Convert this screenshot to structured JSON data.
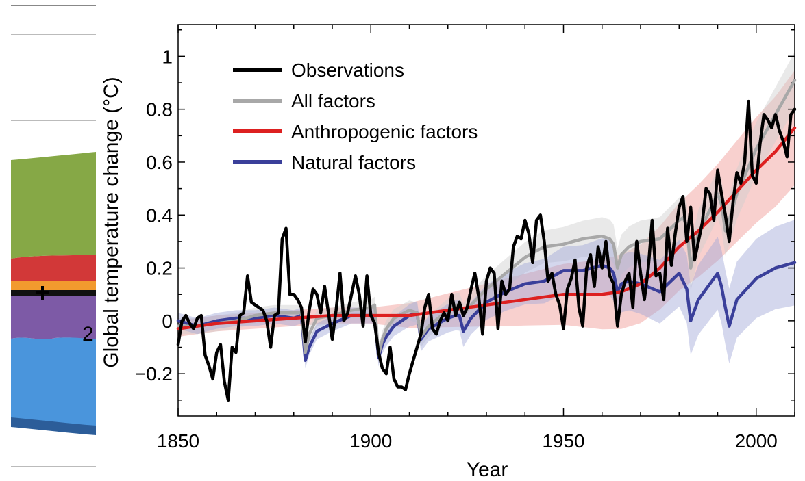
{
  "backdrop": {
    "partial_text": "2"
  },
  "chart_data": {
    "type": "line",
    "xlabel": "Year",
    "ylabel": "Global temperature change (°C)",
    "xlim": [
      1850,
      2010
    ],
    "ylim": [
      -0.36,
      1.12
    ],
    "xticks": [
      1850,
      1900,
      1950,
      2000
    ],
    "yticks": [
      {
        "value": 1,
        "label": "1"
      },
      {
        "value": 0.8,
        "label": "0.8"
      },
      {
        "value": 0.6,
        "label": "0.6"
      },
      {
        "value": 0.4,
        "label": "0.4"
      },
      {
        "value": 0.2,
        "label": "0.2"
      },
      {
        "value": 0,
        "label": "0"
      },
      {
        "value": -0.2,
        "label": "−0.2"
      }
    ],
    "legend_position": "top-left",
    "series": [
      {
        "name": "Observations",
        "color": "#000000",
        "x": [
          1850,
          1851,
          1852,
          1853,
          1854,
          1855,
          1856,
          1857,
          1858,
          1859,
          1860,
          1861,
          1862,
          1863,
          1864,
          1865,
          1866,
          1867,
          1868,
          1869,
          1870,
          1871,
          1872,
          1873,
          1874,
          1875,
          1876,
          1877,
          1878,
          1879,
          1880,
          1881,
          1882,
          1883,
          1884,
          1885,
          1886,
          1887,
          1888,
          1889,
          1890,
          1891,
          1892,
          1893,
          1894,
          1895,
          1896,
          1897,
          1898,
          1899,
          1900,
          1901,
          1902,
          1903,
          1904,
          1905,
          1906,
          1907,
          1908,
          1909,
          1910,
          1911,
          1912,
          1913,
          1914,
          1915,
          1916,
          1917,
          1918,
          1919,
          1920,
          1921,
          1922,
          1923,
          1924,
          1925,
          1926,
          1927,
          1928,
          1929,
          1930,
          1931,
          1932,
          1933,
          1934,
          1935,
          1936,
          1937,
          1938,
          1939,
          1940,
          1941,
          1942,
          1943,
          1944,
          1945,
          1946,
          1947,
          1948,
          1949,
          1950,
          1951,
          1952,
          1953,
          1954,
          1955,
          1956,
          1957,
          1958,
          1959,
          1960,
          1961,
          1962,
          1963,
          1964,
          1965,
          1966,
          1967,
          1968,
          1969,
          1970,
          1971,
          1972,
          1973,
          1974,
          1975,
          1976,
          1977,
          1978,
          1979,
          1980,
          1981,
          1982,
          1983,
          1984,
          1985,
          1986,
          1987,
          1988,
          1989,
          1990,
          1991,
          1992,
          1993,
          1994,
          1995,
          1996,
          1997,
          1998,
          1999,
          2000,
          2001,
          2002,
          2003,
          2004,
          2005,
          2006,
          2007,
          2008,
          2009,
          2010
        ],
        "values": [
          -0.09,
          0.0,
          0.02,
          -0.01,
          -0.03,
          0.01,
          0.02,
          -0.13,
          -0.17,
          -0.22,
          -0.12,
          -0.09,
          -0.23,
          -0.3,
          -0.1,
          -0.12,
          0.02,
          0.03,
          0.17,
          0.07,
          0.06,
          0.05,
          0.04,
          0.0,
          -0.1,
          0.02,
          0.03,
          0.31,
          0.35,
          0.1,
          0.1,
          0.08,
          0.05,
          -0.08,
          0.04,
          0.12,
          0.1,
          0.03,
          0.13,
          0.03,
          -0.07,
          0.04,
          0.18,
          0.0,
          0.03,
          0.1,
          0.17,
          0.1,
          -0.02,
          0.17,
          0.02,
          -0.01,
          -0.12,
          -0.18,
          -0.2,
          -0.1,
          -0.22,
          -0.25,
          -0.25,
          -0.26,
          -0.2,
          -0.15,
          -0.1,
          -0.05,
          0.05,
          0.1,
          -0.03,
          -0.05,
          0.0,
          0.03,
          0.0,
          0.1,
          0.02,
          0.07,
          0.02,
          0.05,
          0.12,
          0.18,
          0.09,
          -0.05,
          0.15,
          0.2,
          0.18,
          -0.03,
          0.15,
          0.1,
          0.12,
          0.28,
          0.32,
          0.31,
          0.38,
          0.33,
          0.22,
          0.38,
          0.4,
          0.3,
          0.15,
          0.18,
          0.1,
          0.06,
          -0.03,
          0.12,
          0.16,
          0.23,
          0.05,
          -0.02,
          0.2,
          0.25,
          0.13,
          0.28,
          0.2,
          0.3,
          0.17,
          0.14,
          -0.02,
          0.1,
          0.15,
          0.18,
          0.05,
          0.3,
          0.18,
          0.08,
          0.2,
          0.38,
          0.17,
          0.18,
          0.08,
          0.35,
          0.21,
          0.33,
          0.43,
          0.47,
          0.3,
          0.43,
          0.23,
          0.3,
          0.37,
          0.5,
          0.48,
          0.38,
          0.57,
          0.48,
          0.4,
          0.3,
          0.45,
          0.56,
          0.52,
          0.6,
          0.83,
          0.55,
          0.52,
          0.67,
          0.78,
          0.76,
          0.73,
          0.78,
          0.72,
          0.68,
          0.62,
          0.78,
          0.8
        ]
      },
      {
        "name": "All factors",
        "color": "#a8a8a8",
        "x": [
          1850,
          1855,
          1860,
          1865,
          1870,
          1875,
          1880,
          1882,
          1883,
          1884,
          1886,
          1890,
          1895,
          1900,
          1901,
          1902,
          1903,
          1904,
          1906,
          1910,
          1912,
          1913,
          1915,
          1920,
          1922,
          1923,
          1924,
          1926,
          1930,
          1935,
          1940,
          1945,
          1950,
          1955,
          1960,
          1962,
          1963,
          1964,
          1965,
          1967,
          1970,
          1975,
          1980,
          1981,
          1982,
          1983,
          1985,
          1990,
          1991,
          1992,
          1993,
          1995,
          2000,
          2005,
          2010
        ],
        "values": [
          -0.02,
          -0.02,
          -0.01,
          0.0,
          0.02,
          0.03,
          0.03,
          0.03,
          -0.12,
          -0.05,
          0.01,
          0.02,
          0.04,
          0.05,
          0.06,
          -0.13,
          -0.07,
          -0.03,
          0.01,
          0.04,
          0.03,
          -0.06,
          -0.02,
          0.04,
          0.06,
          0.06,
          0.02,
          0.06,
          0.12,
          0.18,
          0.24,
          0.28,
          0.29,
          0.31,
          0.32,
          0.31,
          0.29,
          0.2,
          0.25,
          0.28,
          0.3,
          0.31,
          0.38,
          0.39,
          0.36,
          0.2,
          0.33,
          0.48,
          0.44,
          0.34,
          0.38,
          0.48,
          0.65,
          0.78,
          0.91
        ]
      },
      {
        "name": "Anthropogenic factors",
        "color": "#dd2020",
        "x": [
          1850,
          1860,
          1870,
          1880,
          1890,
          1900,
          1910,
          1920,
          1930,
          1940,
          1950,
          1960,
          1965,
          1970,
          1975,
          1980,
          1985,
          1990,
          1995,
          2000,
          2005,
          2010
        ],
        "values": [
          -0.03,
          -0.01,
          0.0,
          0.01,
          0.02,
          0.02,
          0.02,
          0.04,
          0.06,
          0.08,
          0.1,
          0.1,
          0.11,
          0.14,
          0.2,
          0.28,
          0.34,
          0.41,
          0.49,
          0.57,
          0.64,
          0.73
        ]
      },
      {
        "name": "Natural factors",
        "color": "#3a3f9a",
        "x": [
          1850,
          1855,
          1860,
          1865,
          1870,
          1875,
          1880,
          1882,
          1883,
          1884,
          1886,
          1890,
          1895,
          1900,
          1901,
          1902,
          1903,
          1904,
          1906,
          1910,
          1912,
          1913,
          1915,
          1920,
          1922,
          1923,
          1924,
          1926,
          1930,
          1935,
          1940,
          1945,
          1950,
          1955,
          1960,
          1962,
          1963,
          1964,
          1965,
          1967,
          1970,
          1975,
          1980,
          1981,
          1982,
          1983,
          1985,
          1990,
          1991,
          1992,
          1993,
          1995,
          2000,
          2005,
          2010
        ],
        "values": [
          0.0,
          -0.02,
          0.0,
          0.01,
          0.01,
          0.02,
          0.01,
          0.02,
          -0.15,
          -0.1,
          -0.04,
          -0.01,
          0.02,
          0.02,
          0.02,
          -0.14,
          -0.09,
          -0.06,
          -0.02,
          0.02,
          0.03,
          -0.07,
          -0.03,
          0.01,
          0.02,
          0.02,
          -0.04,
          0.01,
          0.07,
          0.11,
          0.14,
          0.15,
          0.19,
          0.19,
          0.21,
          0.2,
          0.18,
          0.11,
          0.14,
          0.15,
          0.14,
          0.11,
          0.18,
          0.15,
          0.12,
          0.0,
          0.08,
          0.18,
          0.13,
          0.05,
          -0.02,
          0.08,
          0.16,
          0.2,
          0.22
        ]
      }
    ]
  }
}
